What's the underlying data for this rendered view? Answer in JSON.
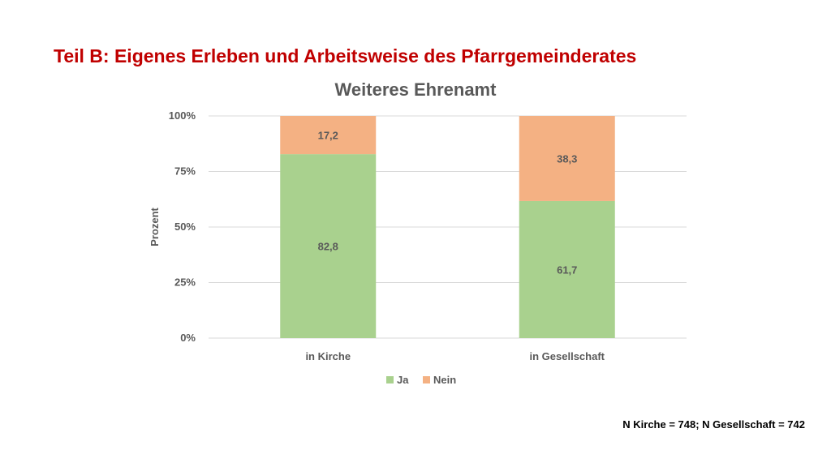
{
  "slide": {
    "title": "Teil B: Eigenes Erleben und Arbeitsweise des Pfarrgemeinderates",
    "footnote": "N Kirche = 748; N Gesellschaft = 742"
  },
  "chart_data": {
    "type": "bar",
    "stacked": true,
    "title": "Weiteres Ehrenamt",
    "xlabel": "",
    "ylabel": "Prozent",
    "ylim": [
      0,
      100
    ],
    "yticks": [
      {
        "value": 0,
        "label": "0%"
      },
      {
        "value": 25,
        "label": "25%"
      },
      {
        "value": 50,
        "label": "50%"
      },
      {
        "value": 75,
        "label": "75%"
      },
      {
        "value": 100,
        "label": "100%"
      }
    ],
    "categories": [
      "in Kirche",
      "in Gesellschaft"
    ],
    "series": [
      {
        "name": "Ja",
        "color": "#a9d18e",
        "values": [
          82.8,
          61.7
        ],
        "labels": [
          "82,8",
          "61,7"
        ]
      },
      {
        "name": "Nein",
        "color": "#f4b183",
        "values": [
          17.2,
          38.3
        ],
        "labels": [
          "17,2",
          "38,3"
        ]
      }
    ],
    "grid": true,
    "legend": "bottom"
  }
}
